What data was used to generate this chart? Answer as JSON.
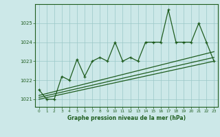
{
  "x": [
    0,
    1,
    2,
    3,
    4,
    5,
    6,
    7,
    8,
    9,
    10,
    11,
    12,
    13,
    14,
    15,
    16,
    17,
    18,
    19,
    20,
    21,
    22,
    23
  ],
  "line_main": [
    1021.5,
    1021.0,
    1021.0,
    1022.2,
    1022.0,
    1023.1,
    1022.2,
    1023.0,
    1023.2,
    1023.0,
    1024.0,
    1023.0,
    1023.2,
    1023.0,
    1024.0,
    1024.0,
    1024.0,
    1025.7,
    1024.0,
    1024.0,
    1024.0,
    1025.0,
    1024.0,
    1023.0
  ],
  "trend1_x": [
    0,
    23
  ],
  "trend1_y": [
    1021.0,
    1023.0
  ],
  "trend2_x": [
    0,
    23
  ],
  "trend2_y": [
    1021.1,
    1023.2
  ],
  "trend3_x": [
    0,
    23
  ],
  "trend3_y": [
    1021.2,
    1023.5
  ],
  "bg_color": "#cce8e8",
  "line_color": "#1e5c1e",
  "grid_color": "#9ac8c8",
  "xlabel": "Graphe pression niveau de la mer (hPa)",
  "ylim": [
    1020.6,
    1026.0
  ],
  "xlim": [
    -0.5,
    23.5
  ],
  "yticks": [
    1021,
    1022,
    1023,
    1024,
    1025
  ],
  "xticks": [
    0,
    1,
    2,
    3,
    4,
    5,
    6,
    7,
    8,
    9,
    10,
    11,
    12,
    13,
    14,
    15,
    16,
    17,
    18,
    19,
    20,
    21,
    22,
    23
  ]
}
